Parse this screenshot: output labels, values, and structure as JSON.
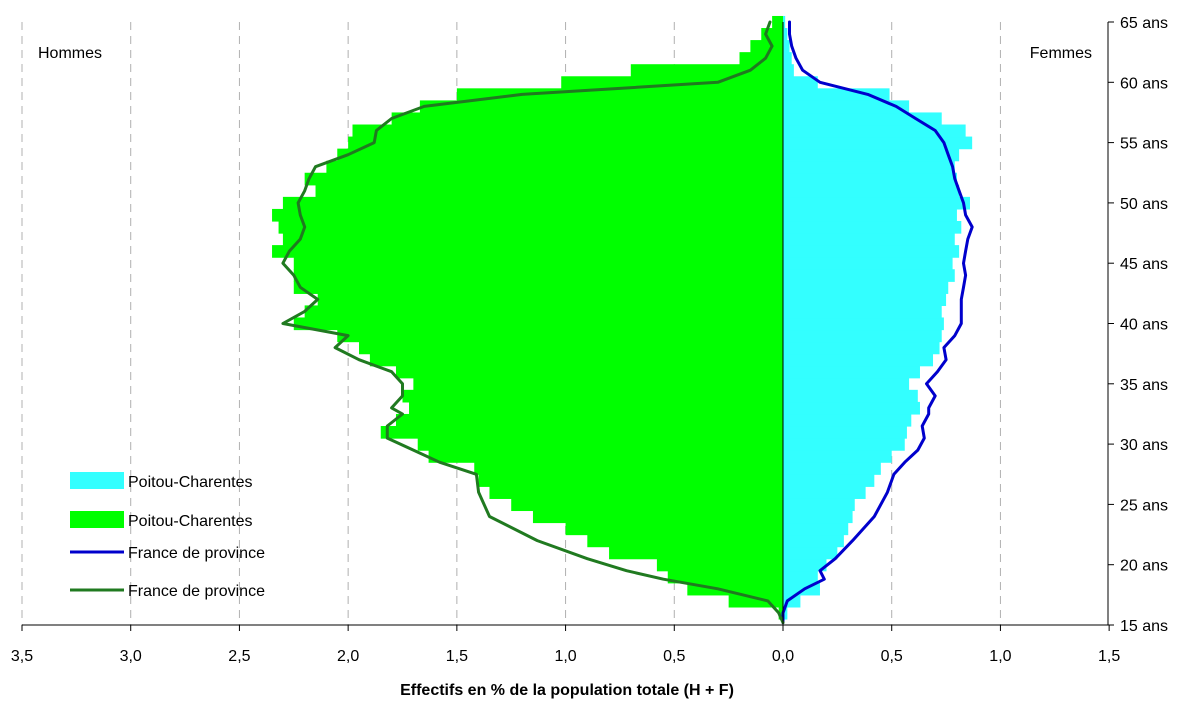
{
  "chart_data": {
    "type": "population-pyramid",
    "xlabel": "Effectifs en % de la population totale (H + F)",
    "side_labels": {
      "left": "Hommes",
      "right": "Femmes"
    },
    "x_ticks": [
      "3,5",
      "3,0",
      "2,5",
      "2,0",
      "1,5",
      "1,0",
      "0,5",
      "0,0",
      "0,5",
      "1,0",
      "1,5"
    ],
    "x_range": {
      "men_max": 3.5,
      "women_max": 1.5
    },
    "y_range": [
      15,
      65
    ],
    "y_ticks": [
      "15 ans",
      "20 ans",
      "25 ans",
      "30 ans",
      "35 ans",
      "40 ans",
      "45 ans",
      "50 ans",
      "55 ans",
      "60 ans",
      "65 ans"
    ],
    "grid": "vertical dashed",
    "legend_position": "bottom-left",
    "colors": {
      "women_bars": "#33FFFF",
      "men_bars": "#00FF00",
      "women_line": "#0000CC",
      "men_line": "#207A20"
    },
    "series": [
      {
        "name": "Poitou-Charentes",
        "side": "women",
        "kind": "bars",
        "ages": [
          16,
          17,
          18,
          19,
          20,
          21,
          22,
          23,
          24,
          25,
          26,
          27,
          28,
          29,
          30,
          31,
          32,
          33,
          34,
          35,
          36,
          37,
          38,
          39,
          40,
          41,
          42,
          43,
          44,
          45,
          46,
          47,
          48,
          49,
          50,
          51,
          52,
          53,
          54,
          55,
          56,
          57,
          58,
          59,
          60,
          61,
          62,
          63,
          64,
          65
        ],
        "values": [
          0.02,
          0.08,
          0.17,
          0.16,
          0.2,
          0.25,
          0.28,
          0.3,
          0.32,
          0.33,
          0.38,
          0.42,
          0.45,
          0.5,
          0.56,
          0.57,
          0.59,
          0.63,
          0.62,
          0.58,
          0.63,
          0.69,
          0.72,
          0.73,
          0.74,
          0.73,
          0.75,
          0.76,
          0.79,
          0.78,
          0.81,
          0.79,
          0.82,
          0.8,
          0.86,
          0.81,
          0.8,
          0.79,
          0.81,
          0.87,
          0.84,
          0.73,
          0.58,
          0.49,
          0.16,
          0.05,
          0.04,
          0.03,
          0.02,
          0.01
        ]
      },
      {
        "name": "Poitou-Charentes",
        "side": "men",
        "kind": "bars",
        "ages": [
          16,
          17,
          18,
          19,
          20,
          21,
          22,
          23,
          24,
          25,
          26,
          27,
          28,
          29,
          30,
          31,
          32,
          33,
          34,
          35,
          36,
          37,
          38,
          39,
          40,
          41,
          42,
          43,
          44,
          45,
          46,
          47,
          48,
          49,
          50,
          51,
          52,
          53,
          54,
          55,
          56,
          57,
          58,
          59,
          60,
          61,
          62,
          63,
          64,
          65
        ],
        "values": [
          0.02,
          0.25,
          0.44,
          0.53,
          0.58,
          0.8,
          0.9,
          1.0,
          1.15,
          1.25,
          1.35,
          1.4,
          1.42,
          1.63,
          1.68,
          1.85,
          1.78,
          1.72,
          1.75,
          1.7,
          1.78,
          1.9,
          1.95,
          2.05,
          2.25,
          2.2,
          2.14,
          2.25,
          2.25,
          2.25,
          2.35,
          2.3,
          2.32,
          2.35,
          2.3,
          2.15,
          2.2,
          2.1,
          2.05,
          2.0,
          1.98,
          1.8,
          1.67,
          1.5,
          1.02,
          0.7,
          0.2,
          0.15,
          0.1,
          0.05
        ]
      },
      {
        "name": "France de province",
        "side": "women",
        "kind": "line",
        "ages": [
          15.2,
          16,
          17,
          18,
          18.8,
          19.5,
          20.5,
          22,
          24,
          26,
          27.5,
          28.5,
          29.5,
          30.5,
          31.5,
          32.5,
          33,
          34,
          35,
          36,
          37,
          38,
          39,
          40,
          41,
          42,
          43,
          44,
          45,
          46,
          47,
          48,
          49,
          50,
          51,
          52,
          53,
          54,
          55,
          56,
          57,
          58,
          59,
          60,
          61,
          62,
          63,
          64,
          65
        ],
        "values": [
          0.0,
          0.0,
          0.02,
          0.1,
          0.19,
          0.17,
          0.24,
          0.32,
          0.42,
          0.48,
          0.51,
          0.56,
          0.62,
          0.65,
          0.64,
          0.67,
          0.67,
          0.7,
          0.66,
          0.71,
          0.75,
          0.74,
          0.79,
          0.82,
          0.82,
          0.82,
          0.83,
          0.84,
          0.83,
          0.84,
          0.85,
          0.87,
          0.84,
          0.83,
          0.81,
          0.79,
          0.78,
          0.76,
          0.74,
          0.7,
          0.61,
          0.52,
          0.39,
          0.17,
          0.09,
          0.06,
          0.04,
          0.03,
          0.03
        ]
      },
      {
        "name": "France de province",
        "side": "men",
        "kind": "line",
        "ages": [
          15.2,
          16,
          17,
          18,
          18.8,
          19.5,
          20.5,
          22,
          24,
          26,
          27.5,
          28.5,
          29.5,
          30.5,
          31.5,
          32.5,
          33,
          34,
          35,
          36,
          37,
          38,
          39,
          40,
          41,
          42,
          43,
          44,
          45,
          46,
          47,
          48,
          49,
          50,
          51,
          52,
          53,
          54,
          55,
          56,
          57,
          58,
          59,
          60,
          61,
          62,
          63,
          64,
          65
        ],
        "values": [
          0.0,
          0.02,
          0.07,
          0.3,
          0.55,
          0.72,
          0.9,
          1.13,
          1.35,
          1.4,
          1.41,
          1.58,
          1.7,
          1.82,
          1.82,
          1.75,
          1.8,
          1.75,
          1.75,
          1.8,
          1.95,
          2.06,
          2.0,
          2.3,
          2.2,
          2.14,
          2.22,
          2.25,
          2.3,
          2.27,
          2.22,
          2.2,
          2.22,
          2.23,
          2.2,
          2.18,
          2.15,
          2.0,
          1.88,
          1.87,
          1.8,
          1.65,
          1.2,
          0.3,
          0.15,
          0.08,
          0.05,
          0.08,
          0.06
        ]
      }
    ]
  }
}
